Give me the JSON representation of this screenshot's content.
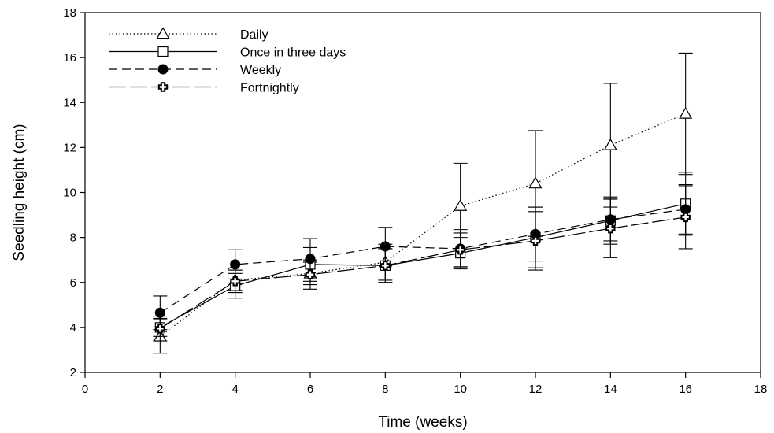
{
  "chart_data": {
    "type": "line",
    "title": "",
    "xlabel": "Time (weeks)",
    "ylabel": "Seedling height (cm)",
    "xlim": [
      0,
      18
    ],
    "ylim": [
      2,
      18
    ],
    "x_ticks": [
      0,
      2,
      4,
      6,
      8,
      10,
      12,
      14,
      16,
      18
    ],
    "y_ticks": [
      2,
      4,
      6,
      8,
      10,
      12,
      14,
      16,
      18
    ],
    "grid": false,
    "legend_position": "top-left",
    "x": [
      2,
      4,
      6,
      8,
      10,
      12,
      14,
      16
    ],
    "series": [
      {
        "name": "Daily",
        "marker": "open-triangle",
        "line_style": "dotted",
        "color": "#000000",
        "values": [
          3.6,
          6.1,
          6.4,
          6.9,
          9.4,
          10.4,
          12.1,
          13.5
        ],
        "errors": [
          0.75,
          0.45,
          0.5,
          0.8,
          1.9,
          2.35,
          2.75,
          2.7
        ]
      },
      {
        "name": "Once in three days",
        "marker": "open-square",
        "line_style": "solid",
        "color": "#000000",
        "values": [
          4.0,
          5.85,
          6.8,
          6.75,
          7.3,
          8.0,
          8.75,
          9.5
        ],
        "errors": [
          0.4,
          0.55,
          0.75,
          0.75,
          0.7,
          1.35,
          1.05,
          1.4
        ]
      },
      {
        "name": "Weekly",
        "marker": "filled-circle",
        "line_style": "dashed",
        "color": "#000000",
        "values": [
          4.65,
          6.8,
          7.05,
          7.6,
          7.5,
          8.15,
          8.8,
          9.25
        ],
        "errors": [
          0.75,
          0.65,
          0.9,
          0.85,
          0.85,
          1.2,
          0.95,
          1.1
        ]
      },
      {
        "name": "Fortnightly",
        "marker": "open-cross",
        "line_style": "long-dash",
        "color": "#000000",
        "values": [
          3.95,
          6.05,
          6.35,
          6.75,
          7.45,
          7.85,
          8.4,
          8.9
        ],
        "errors": [
          0.55,
          0.5,
          0.65,
          0.75,
          0.75,
          1.3,
          1.3,
          1.4
        ]
      }
    ]
  }
}
